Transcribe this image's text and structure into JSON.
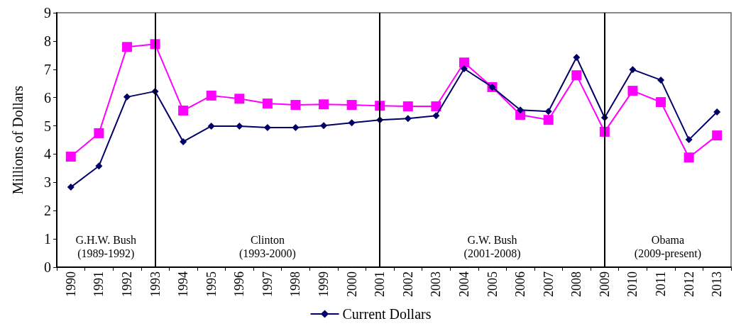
{
  "chart_data": {
    "type": "line",
    "ylabel": "Millions of Dollars",
    "categories": [
      "1990",
      "1991",
      "1992",
      "1993",
      "1994",
      "1995",
      "1996",
      "1997",
      "1998",
      "1999",
      "2000",
      "2001",
      "2002",
      "2003",
      "2004",
      "2005",
      "2006",
      "2007",
      "2008",
      "2009",
      "2010",
      "2011",
      "2012",
      "2013"
    ],
    "series": [
      {
        "color": "#ff00ff",
        "marker": "square",
        "values": [
          3.91,
          4.74,
          7.79,
          7.89,
          5.54,
          6.07,
          5.96,
          5.79,
          5.74,
          5.76,
          5.74,
          5.71,
          5.69,
          5.69,
          7.24,
          6.37,
          5.39,
          5.21,
          6.79,
          4.79,
          6.24,
          5.84,
          3.88,
          4.66
        ]
      },
      {
        "name": "Current Dollars",
        "color": "#000066",
        "marker": "diamond",
        "values": [
          2.83,
          3.58,
          6.02,
          6.22,
          4.44,
          4.99,
          4.99,
          4.94,
          4.94,
          5.01,
          5.11,
          5.21,
          5.26,
          5.36,
          7.02,
          6.37,
          5.56,
          5.51,
          7.42,
          5.29,
          6.99,
          6.62,
          4.51,
          5.49
        ]
      }
    ],
    "ylim": [
      0,
      9
    ],
    "yticks": [
      0,
      1,
      2,
      3,
      4,
      5,
      6,
      7,
      8,
      9
    ],
    "grid": false,
    "legend": "bottom",
    "ref_lines": [
      {
        "axis": "x",
        "value": "1993",
        "color": "#000000"
      },
      {
        "axis": "x",
        "value": "2001",
        "color": "#000000"
      },
      {
        "axis": "x",
        "value": "2009",
        "color": "#000000"
      }
    ],
    "annotations": [
      "G.H.W. Bush\n(1989-1992)",
      "Clinton\n(1993-2000)",
      "G.W. Bush\n(2001-2008)",
      "Obama\n(2009-present)"
    ]
  }
}
